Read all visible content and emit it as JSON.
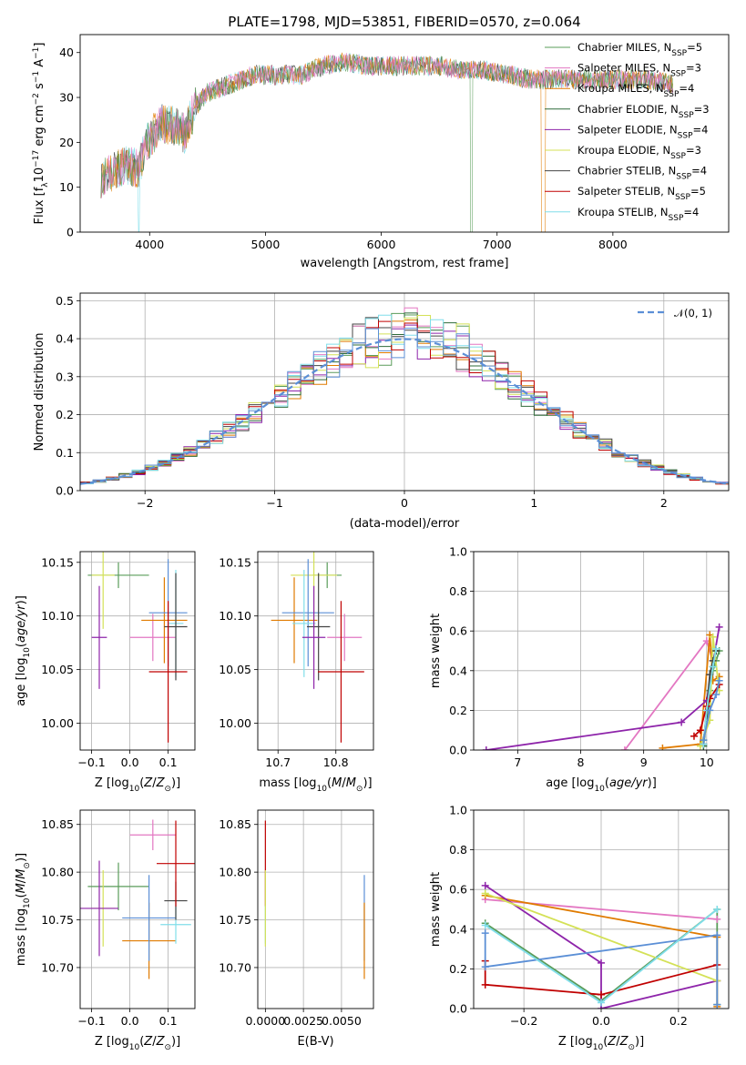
{
  "figure": {
    "title": "PLATE=1798, MJD=53851, FIBERID=0570, z=0.064"
  },
  "legend": {
    "entries": [
      {
        "label": "Chabrier MILES, N",
        "sub": "SSP",
        "suffix": "=5",
        "color": "#5a9c5a"
      },
      {
        "label": "Salpeter MILES, N",
        "sub": "SSP",
        "suffix": "=3",
        "color": "#e377c2"
      },
      {
        "label": "Kroupa MILES, N",
        "sub": "SSP",
        "suffix": "=4",
        "color": "#e07b00"
      },
      {
        "label": "Chabrier ELODIE, N",
        "sub": "SSP",
        "suffix": "=3",
        "color": "#2e6b3a"
      },
      {
        "label": "Salpeter ELODIE, N",
        "sub": "SSP",
        "suffix": "=4",
        "color": "#8e24aa"
      },
      {
        "label": "Kroupa ELODIE, N",
        "sub": "SSP",
        "suffix": "=3",
        "color": "#d4e157"
      },
      {
        "label": "Chabrier STELIB, N",
        "sub": "SSP",
        "suffix": "=4",
        "color": "#444444"
      },
      {
        "label": "Salpeter STELIB, N",
        "sub": "SSP",
        "suffix": "=5",
        "color": "#c00000"
      },
      {
        "label": "Kroupa STELIB, N",
        "sub": "SSP",
        "suffix": "=4",
        "color": "#80deea"
      }
    ],
    "normal_label": "𝒩(0, 1)",
    "normal_color": "#5b8fd6"
  },
  "chart_data": [
    {
      "id": "spectrum",
      "type": "line",
      "xlabel": "wavelength [Angstrom, rest frame]",
      "ylabel": "Flux [f",
      "ylabel_full": "Flux [fλ10⁻¹⁷ erg cm⁻² s⁻¹ A⁻¹]",
      "xlim": [
        3400,
        9000
      ],
      "ylim": [
        0,
        44
      ],
      "xticks": [
        4000,
        5000,
        6000,
        7000,
        8000
      ],
      "yticks": [
        0,
        10,
        20,
        30,
        40
      ],
      "continuum": [
        [
          3580,
          12
        ],
        [
          3700,
          14
        ],
        [
          3800,
          15
        ],
        [
          3900,
          14
        ],
        [
          3950,
          18
        ],
        [
          4000,
          21
        ],
        [
          4100,
          24
        ],
        [
          4200,
          24
        ],
        [
          4300,
          22
        ],
        [
          4400,
          28
        ],
        [
          4500,
          31
        ],
        [
          4700,
          33
        ],
        [
          4900,
          35
        ],
        [
          5100,
          35
        ],
        [
          5300,
          35
        ],
        [
          5500,
          37
        ],
        [
          5700,
          38
        ],
        [
          5900,
          37
        ],
        [
          6100,
          37
        ],
        [
          6300,
          37
        ],
        [
          6500,
          37
        ],
        [
          6700,
          36
        ],
        [
          6900,
          36
        ],
        [
          7100,
          35
        ],
        [
          7300,
          34
        ],
        [
          7500,
          34
        ],
        [
          7700,
          34
        ],
        [
          7900,
          34
        ],
        [
          8100,
          34
        ],
        [
          8300,
          34
        ],
        [
          8500,
          33
        ]
      ],
      "grid": false
    },
    {
      "id": "residuals",
      "type": "step",
      "xlabel": "(data-model)/error",
      "ylabel": "Normed distribution",
      "xlim": [
        -2.5,
        2.5
      ],
      "ylim": [
        0,
        0.52
      ],
      "xticks": [
        -2,
        -1,
        0,
        1,
        2
      ],
      "yticks": [
        0.0,
        0.1,
        0.2,
        0.3,
        0.4,
        0.5
      ],
      "bin_width": 0.1,
      "grid": true
    },
    {
      "id": "age-vs-Z",
      "type": "errorbar",
      "xlabel": "Z [log",
      "ylabel": "age  [log",
      "xlim": [
        -0.13,
        0.17
      ],
      "ylim": [
        9.975,
        10.16
      ],
      "xticks": [
        -0.1,
        0.0,
        0.1
      ],
      "yticks": [
        10.0,
        10.05,
        10.1,
        10.15
      ],
      "points": [
        {
          "x": -0.03,
          "xerr": 0.08,
          "y": 10.138,
          "yerr": 0.012,
          "color": "#5a9c5a"
        },
        {
          "x": -0.07,
          "xerr": 0.03,
          "y": 10.138,
          "yerr": 0.05,
          "color": "#d4e157"
        },
        {
          "x": 0.06,
          "xerr": 0.06,
          "y": 10.08,
          "yerr": 0.022,
          "color": "#e377c2"
        },
        {
          "x": 0.09,
          "xerr": 0.06,
          "y": 10.096,
          "yerr": 0.04,
          "color": "#e07b00"
        },
        {
          "x": 0.1,
          "xerr": 0.05,
          "y": 10.103,
          "yerr": 0.05,
          "color": "#5b8fd6"
        },
        {
          "x": 0.12,
          "xerr": 0.02,
          "y": 10.093,
          "yerr": 0.05,
          "color": "#80deea"
        },
        {
          "x": 0.12,
          "xerr": 0.03,
          "y": 10.09,
          "yerr": 0.05,
          "color": "#444444"
        },
        {
          "x": -0.08,
          "xerr": 0.02,
          "y": 10.08,
          "yerr": 0.048,
          "color": "#8e24aa"
        },
        {
          "x": 0.1,
          "xerr": 0.05,
          "y": 10.048,
          "yerr": 0.066,
          "color": "#c00000"
        }
      ],
      "grid": true
    },
    {
      "id": "age-vs-mass",
      "type": "errorbar",
      "xlabel": "mass [log",
      "xlim": [
        10.665,
        10.865
      ],
      "ylim": [
        9.975,
        10.16
      ],
      "xticks": [
        10.7,
        10.8
      ],
      "yticks": [
        10.0,
        10.05,
        10.1,
        10.15
      ],
      "points": [
        {
          "x": 10.785,
          "xerr": 0.025,
          "y": 10.138,
          "yerr": 0.012,
          "color": "#5a9c5a"
        },
        {
          "x": 10.762,
          "xerr": 0.04,
          "y": 10.138,
          "yerr": 0.05,
          "color": "#d4e157"
        },
        {
          "x": 10.815,
          "xerr": 0.03,
          "y": 10.08,
          "yerr": 0.022,
          "color": "#e377c2"
        },
        {
          "x": 10.728,
          "xerr": 0.04,
          "y": 10.096,
          "yerr": 0.04,
          "color": "#e07b00"
        },
        {
          "x": 10.752,
          "xerr": 0.045,
          "y": 10.103,
          "yerr": 0.05,
          "color": "#5b8fd6"
        },
        {
          "x": 10.745,
          "xerr": 0.02,
          "y": 10.093,
          "yerr": 0.05,
          "color": "#80deea"
        },
        {
          "x": 10.77,
          "xerr": 0.02,
          "y": 10.09,
          "yerr": 0.05,
          "color": "#444444"
        },
        {
          "x": 10.762,
          "xerr": 0.02,
          "y": 10.08,
          "yerr": 0.048,
          "color": "#8e24aa"
        },
        {
          "x": 10.809,
          "xerr": 0.04,
          "y": 10.048,
          "yerr": 0.066,
          "color": "#c00000"
        }
      ],
      "grid": true
    },
    {
      "id": "weight-vs-age",
      "type": "line",
      "xlabel": "age  [log",
      "ylabel": "mass weight",
      "xlim": [
        6.3,
        10.35
      ],
      "ylim": [
        0,
        1
      ],
      "xticks": [
        7,
        8,
        9,
        10
      ],
      "yticks": [
        0.0,
        0.2,
        0.4,
        0.6,
        0.8,
        1.0
      ],
      "series": [
        {
          "color": "#5a9c5a",
          "x": [
            9.95,
            10.05,
            10.1,
            10.15,
            10.2
          ],
          "y": [
            0.05,
            0.3,
            0.4,
            0.45,
            0.5
          ]
        },
        {
          "color": "#e377c2",
          "x": [
            8.7,
            10.0,
            10.1
          ],
          "y": [
            0.0,
            0.55,
            0.45
          ]
        },
        {
          "color": "#e07b00",
          "x": [
            9.3,
            9.9,
            10.05,
            10.1,
            10.2
          ],
          "y": [
            0.01,
            0.03,
            0.58,
            0.35,
            0.37
          ]
        },
        {
          "color": "#2e6b3a",
          "x": [
            9.95,
            10.1,
            10.15
          ],
          "y": [
            0.02,
            0.42,
            0.5
          ]
        },
        {
          "color": "#8e24aa",
          "x": [
            6.5,
            9.6,
            10.0,
            10.2
          ],
          "y": [
            0.0,
            0.14,
            0.25,
            0.62
          ]
        },
        {
          "color": "#d4e157",
          "x": [
            9.9,
            10.05,
            10.1,
            10.2
          ],
          "y": [
            0.02,
            0.15,
            0.57,
            0.3
          ]
        },
        {
          "color": "#444444",
          "x": [
            9.95,
            10.05,
            10.1,
            10.15
          ],
          "y": [
            0.03,
            0.38,
            0.45,
            0.5
          ]
        },
        {
          "color": "#c00000",
          "x": [
            9.8,
            9.9,
            10.0,
            10.05,
            10.2
          ],
          "y": [
            0.07,
            0.1,
            0.22,
            0.26,
            0.33
          ]
        },
        {
          "color": "#80deea",
          "x": [
            9.95,
            10.0,
            10.1,
            10.15
          ],
          "y": [
            0.03,
            0.2,
            0.42,
            0.51
          ]
        },
        {
          "color": "#5b8fd6",
          "x": [
            9.95,
            10.05,
            10.15,
            10.2
          ],
          "y": [
            0.05,
            0.2,
            0.28,
            0.35
          ]
        }
      ],
      "grid": true
    },
    {
      "id": "mass-vs-Z",
      "type": "errorbar",
      "xlabel": "Z [log",
      "ylabel": "mass [log",
      "xlim": [
        -0.13,
        0.17
      ],
      "ylim": [
        10.657,
        10.865
      ],
      "xticks": [
        -0.1,
        0.0,
        0.1
      ],
      "yticks": [
        10.7,
        10.75,
        10.8,
        10.85
      ],
      "points": [
        {
          "x": -0.03,
          "xerr": 0.08,
          "y": 10.785,
          "yerr": 0.025,
          "color": "#5a9c5a"
        },
        {
          "x": -0.07,
          "xerr": 0.03,
          "y": 10.762,
          "yerr": 0.04,
          "color": "#d4e157"
        },
        {
          "x": 0.06,
          "xerr": 0.06,
          "y": 10.839,
          "yerr": 0.016,
          "color": "#e377c2"
        },
        {
          "x": 0.05,
          "xerr": 0.07,
          "y": 10.728,
          "yerr": 0.04,
          "color": "#e07b00"
        },
        {
          "x": 0.05,
          "xerr": 0.07,
          "y": 10.752,
          "yerr": 0.045,
          "color": "#5b8fd6"
        },
        {
          "x": 0.12,
          "xerr": 0.04,
          "y": 10.745,
          "yerr": 0.02,
          "color": "#80deea"
        },
        {
          "x": 0.12,
          "xerr": 0.03,
          "y": 10.77,
          "yerr": 0.02,
          "color": "#444444"
        },
        {
          "x": -0.08,
          "xerr": 0.05,
          "y": 10.762,
          "yerr": 0.05,
          "color": "#8e24aa"
        },
        {
          "x": 0.12,
          "xerr": 0.05,
          "y": 10.809,
          "yerr": 0.045,
          "color": "#c00000"
        }
      ],
      "grid": true
    },
    {
      "id": "mass-vs-EBV",
      "type": "errorbar",
      "xlabel": "E(B-V)",
      "xlim": [
        -0.0005,
        0.0071
      ],
      "ylim": [
        10.657,
        10.865
      ],
      "xticks": [
        0.0,
        0.0025,
        0.005
      ],
      "xticklabels": [
        "0.0000",
        "0.0025",
        "0.0050"
      ],
      "yticks": [
        10.7,
        10.75,
        10.8,
        10.85
      ],
      "points": [
        {
          "x": 0.0,
          "xerr": 0,
          "y": 10.809,
          "yerr": 0.045,
          "color": "#c00000"
        },
        {
          "x": 0.0,
          "xerr": 0,
          "y": 10.745,
          "yerr": 0.02,
          "color": "#80deea"
        },
        {
          "x": 0.0,
          "xerr": 0,
          "y": 10.762,
          "yerr": 0.04,
          "color": "#d4e157"
        },
        {
          "x": 0.0065,
          "xerr": 0,
          "y": 10.752,
          "yerr": 0.045,
          "color": "#5b8fd6"
        },
        {
          "x": 0.0065,
          "xerr": 0,
          "y": 10.728,
          "yerr": 0.04,
          "color": "#e07b00"
        }
      ],
      "grid": true
    },
    {
      "id": "weight-vs-Z",
      "type": "line",
      "xlabel": "Z [log",
      "ylabel": "mass weight",
      "xlim": [
        -0.33,
        0.33
      ],
      "ylim": [
        0,
        1
      ],
      "xticks": [
        -0.2,
        0.0,
        0.2
      ],
      "yticks": [
        0.0,
        0.2,
        0.4,
        0.6,
        0.8,
        1.0
      ],
      "series": [
        {
          "color": "#5a9c5a",
          "x": [
            -0.3,
            0.0,
            0.3,
            0.3
          ],
          "y": [
            0.43,
            0.04,
            0.5,
            0.02
          ]
        },
        {
          "color": "#e377c2",
          "x": [
            -0.3,
            0.3
          ],
          "y": [
            0.55,
            0.45
          ]
        },
        {
          "color": "#e07b00",
          "x": [
            -0.3,
            0.3,
            0.3
          ],
          "y": [
            0.57,
            0.36,
            0.01
          ]
        },
        {
          "color": "#8e24aa",
          "x": [
            -0.3,
            0.0,
            0.0,
            0.3
          ],
          "y": [
            0.62,
            0.23,
            0.0,
            0.14
          ]
        },
        {
          "color": "#d4e157",
          "x": [
            -0.3,
            0.3
          ],
          "y": [
            0.58,
            0.14
          ]
        },
        {
          "color": "#c00000",
          "x": [
            -0.3,
            -0.3,
            0.0,
            0.3
          ],
          "y": [
            0.24,
            0.12,
            0.07,
            0.22
          ]
        },
        {
          "color": "#5b8fd6",
          "x": [
            -0.3,
            -0.3,
            0.3,
            0.3
          ],
          "y": [
            0.38,
            0.21,
            0.37,
            0.02
          ]
        },
        {
          "color": "#80deea",
          "x": [
            -0.3,
            0.0,
            0.3
          ],
          "y": [
            0.42,
            0.03,
            0.5
          ]
        }
      ],
      "grid": true
    }
  ]
}
